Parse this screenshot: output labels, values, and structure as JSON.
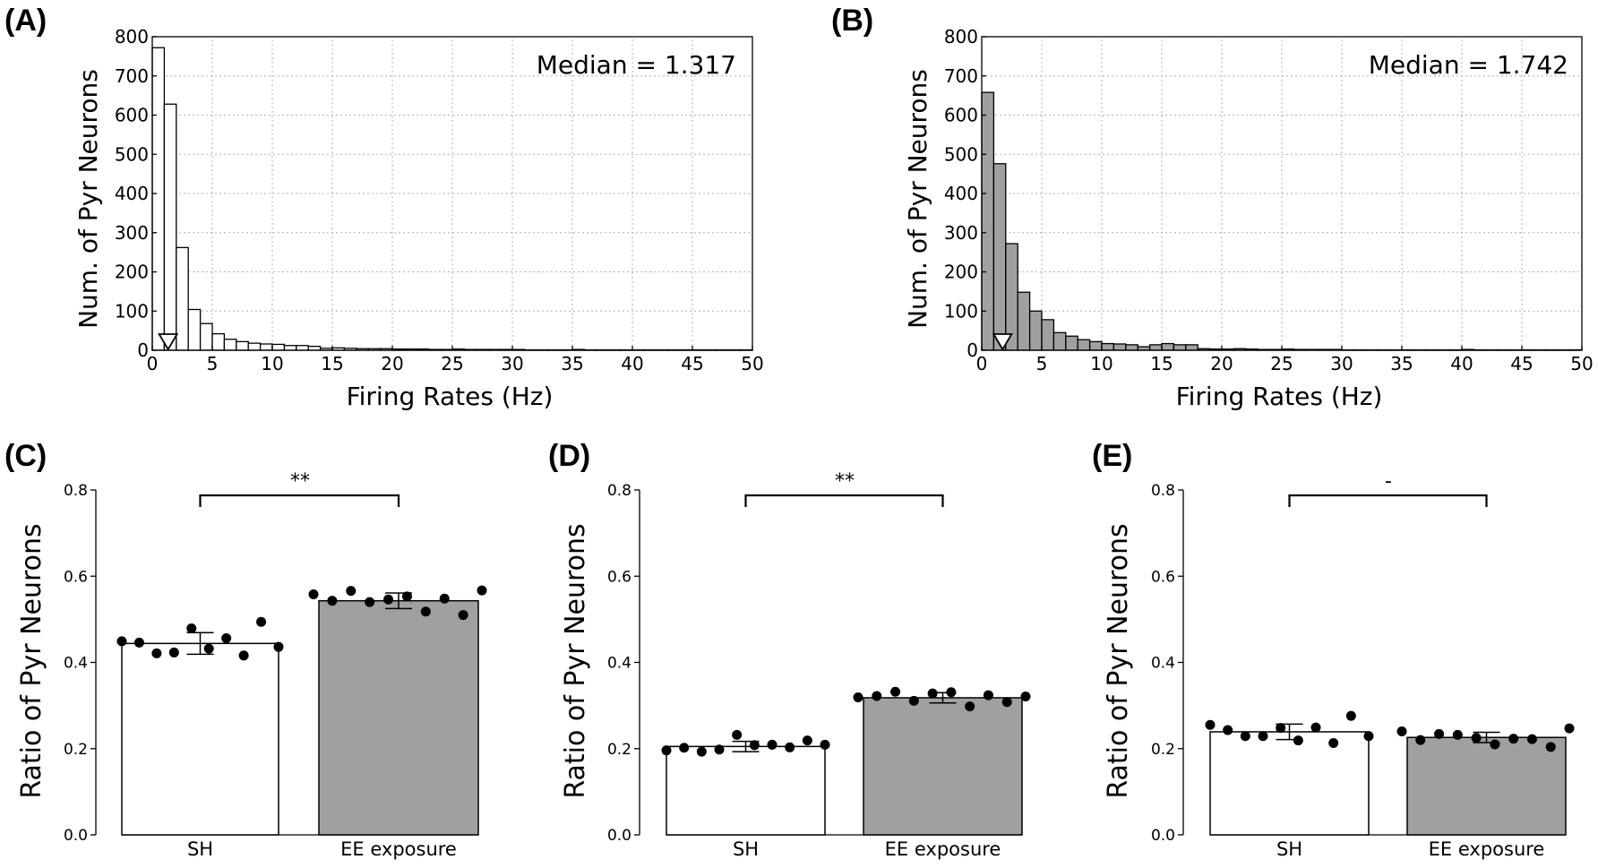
{
  "colors": {
    "white_bar": "#ffffff",
    "gray_bar": "#a0a0a0",
    "edge": "#000000",
    "dot": "#000000"
  },
  "chart_data": [
    {
      "id": "A",
      "panel_label": "(A)",
      "type": "bar",
      "subtype": "histogram",
      "title": "",
      "xlabel": "Firing Rates (Hz)",
      "ylabel": "Num. of Pyr Neurons",
      "xlim": [
        0,
        50
      ],
      "ylim": [
        0,
        800
      ],
      "xticks": [
        0,
        5,
        10,
        15,
        20,
        25,
        30,
        35,
        40,
        45,
        50
      ],
      "yticks": [
        0,
        100,
        200,
        300,
        400,
        500,
        600,
        700,
        800
      ],
      "grid": true,
      "bin_width": 1,
      "bar_fill": "white",
      "values": [
        772,
        628,
        262,
        104,
        68,
        42,
        28,
        22,
        18,
        16,
        15,
        12,
        12,
        10,
        5,
        6,
        5,
        4,
        4,
        4,
        3,
        3,
        3,
        2,
        2,
        3,
        2,
        2,
        2,
        2,
        2,
        1,
        1,
        1,
        1,
        2,
        1,
        1,
        1,
        1,
        1,
        1,
        1,
        1,
        1,
        1,
        1,
        1,
        1,
        1
      ],
      "annotation": "Median = 1.317",
      "median": 1.317
    },
    {
      "id": "B",
      "panel_label": "(B)",
      "type": "bar",
      "subtype": "histogram",
      "title": "",
      "xlabel": "Firing Rates (Hz)",
      "ylabel": "Num. of Pyr Neurons",
      "xlim": [
        0,
        50
      ],
      "ylim": [
        0,
        800
      ],
      "xticks": [
        0,
        5,
        10,
        15,
        20,
        25,
        30,
        35,
        40,
        45,
        50
      ],
      "yticks": [
        0,
        100,
        200,
        300,
        400,
        500,
        600,
        700,
        800
      ],
      "grid": true,
      "bin_width": 1,
      "bar_fill": "gray",
      "values": [
        658,
        476,
        272,
        148,
        100,
        78,
        45,
        36,
        27,
        22,
        17,
        16,
        14,
        9,
        14,
        17,
        14,
        14,
        4,
        3,
        3,
        4,
        3,
        2,
        2,
        3,
        2,
        2,
        2,
        2,
        1,
        1,
        1,
        1,
        1,
        1,
        1,
        1,
        1,
        1,
        2,
        1,
        1,
        1,
        1,
        1,
        1,
        1,
        1,
        1
      ],
      "annotation": "Median = 1.742",
      "median": 1.742
    },
    {
      "id": "C",
      "panel_label": "(C)",
      "type": "bar",
      "ylabel": "Ratio of Pyr Neurons",
      "ylim": [
        0,
        0.8
      ],
      "yticks": [
        "0.0",
        "0.2",
        "0.4",
        "0.6",
        "0.8"
      ],
      "categories": [
        "SH",
        "EE exposure"
      ],
      "values": [
        0.444,
        0.543
      ],
      "errors": [
        0.025,
        0.018
      ],
      "points": [
        [
          0.449,
          0.446,
          0.421,
          0.423,
          0.479,
          0.432,
          0.456,
          0.416,
          0.494,
          0.436
        ],
        [
          0.558,
          0.543,
          0.566,
          0.54,
          0.546,
          0.553,
          0.518,
          0.548,
          0.51,
          0.567
        ]
      ],
      "significance": "**"
    },
    {
      "id": "D",
      "panel_label": "(D)",
      "type": "bar",
      "ylabel": "Ratio of Pyr Neurons",
      "ylim": [
        0,
        0.8
      ],
      "yticks": [
        "0.0",
        "0.2",
        "0.4",
        "0.6",
        "0.8"
      ],
      "categories": [
        "SH",
        "EE exposure"
      ],
      "values": [
        0.205,
        0.318
      ],
      "errors": [
        0.012,
        0.012
      ],
      "points": [
        [
          0.196,
          0.202,
          0.193,
          0.198,
          0.232,
          0.208,
          0.209,
          0.203,
          0.219,
          0.209
        ],
        [
          0.319,
          0.322,
          0.332,
          0.311,
          0.328,
          0.331,
          0.298,
          0.324,
          0.308,
          0.321
        ]
      ],
      "significance": "**"
    },
    {
      "id": "E",
      "panel_label": "(E)",
      "type": "bar",
      "ylabel": "Ratio of Pyr Neurons",
      "ylim": [
        0,
        0.8
      ],
      "yticks": [
        "0.0",
        "0.2",
        "0.4",
        "0.6",
        "0.8"
      ],
      "categories": [
        "SH",
        "EE exposure"
      ],
      "values": [
        0.239,
        0.226
      ],
      "errors": [
        0.018,
        0.012
      ],
      "points": [
        [
          0.255,
          0.243,
          0.229,
          0.229,
          0.248,
          0.219,
          0.249,
          0.213,
          0.276,
          0.229
        ],
        [
          0.24,
          0.22,
          0.234,
          0.232,
          0.225,
          0.21,
          0.223,
          0.222,
          0.204,
          0.247
        ]
      ],
      "significance": "-"
    }
  ]
}
